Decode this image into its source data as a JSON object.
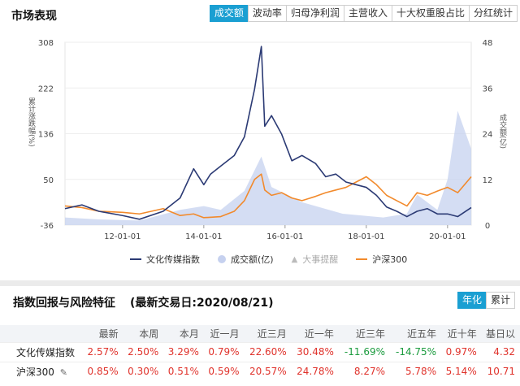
{
  "market": {
    "title": "市场表现",
    "tabs": [
      "成交额",
      "波动率",
      "归母净利润",
      "主营收入",
      "十大权重股占比",
      "分红统计"
    ],
    "active_tab": 0
  },
  "chart_data": {
    "type": "line",
    "ylabel_left": "累计涨跌幅(%)",
    "ylabel_right": "成交额(亿)",
    "y_left_ticks": [
      "308",
      "222",
      "136",
      "50",
      "-36"
    ],
    "y_right_ticks": [
      "48",
      "36",
      "24",
      "12",
      "0"
    ],
    "ylim_left": [
      -36,
      308
    ],
    "ylim_right": [
      0,
      48
    ],
    "x_ticks": [
      "12-01-01",
      "14-01-01",
      "16-01-01",
      "18-01-01",
      "20-01-01"
    ],
    "legend": [
      "文化传媒指数",
      "成交额(亿)",
      "大事提醒",
      "沪深300"
    ],
    "colors": {
      "index": "#2b3a74",
      "volume": "#c6d1ef",
      "hs300": "#f28a2c"
    },
    "series": [
      {
        "name": "文化传媒指数",
        "x": [
          "10-08",
          "11-01",
          "11-06",
          "12-01",
          "12-06",
          "13-01",
          "13-06",
          "13-10",
          "14-01",
          "14-03",
          "14-06",
          "14-10",
          "15-01",
          "15-04",
          "15-06",
          "15-07",
          "15-09",
          "15-12",
          "16-03",
          "16-06",
          "16-10",
          "17-01",
          "17-04",
          "17-07",
          "17-10",
          "18-01",
          "18-04",
          "18-07",
          "18-10",
          "19-01",
          "19-04",
          "19-07",
          "19-10",
          "20-01",
          "20-04",
          "20-08"
        ],
        "values": [
          -5,
          2,
          -10,
          -18,
          -25,
          -10,
          15,
          70,
          40,
          60,
          75,
          95,
          130,
          220,
          300,
          150,
          170,
          135,
          85,
          95,
          80,
          55,
          60,
          45,
          40,
          35,
          20,
          -2,
          -10,
          -20,
          -10,
          -5,
          -15,
          -15,
          -20,
          -3
        ]
      },
      {
        "name": "沪深300",
        "x": [
          "10-08",
          "11-01",
          "11-06",
          "12-01",
          "12-06",
          "13-01",
          "13-06",
          "13-10",
          "14-01",
          "14-06",
          "14-10",
          "15-01",
          "15-04",
          "15-06",
          "15-07",
          "15-09",
          "15-12",
          "16-03",
          "16-06",
          "16-10",
          "17-01",
          "17-04",
          "17-07",
          "17-10",
          "18-01",
          "18-04",
          "18-07",
          "18-10",
          "19-01",
          "19-04",
          "19-07",
          "19-10",
          "20-01",
          "20-04",
          "20-08"
        ],
        "values": [
          0,
          -3,
          -10,
          -12,
          -15,
          -5,
          -18,
          -15,
          -22,
          -20,
          -10,
          10,
          50,
          60,
          30,
          20,
          25,
          15,
          10,
          18,
          25,
          30,
          35,
          45,
          55,
          40,
          20,
          10,
          0,
          25,
          20,
          28,
          35,
          25,
          55
        ]
      },
      {
        "name": "成交额(亿)",
        "x": [
          "10-08",
          "11-06",
          "12-06",
          "13-06",
          "14-01",
          "14-06",
          "15-01",
          "15-06",
          "15-09",
          "16-06",
          "17-06",
          "18-06",
          "19-01",
          "19-04",
          "19-10",
          "20-01",
          "20-04",
          "20-08"
        ],
        "values": [
          2,
          1.5,
          1.2,
          4,
          5,
          4,
          9,
          18,
          10,
          6,
          3,
          2,
          3,
          8,
          4,
          12,
          30,
          20
        ]
      }
    ]
  },
  "risk": {
    "title": "指数回报与风险特征",
    "date_text": "(最新交易日:2020/08/21)",
    "toggle": [
      "年化",
      "累计"
    ],
    "headers": [
      "最新",
      "本周",
      "本月",
      "近一月",
      "近三月",
      "近一年",
      "近三年",
      "近五年",
      "近十年",
      "基日以"
    ],
    "rows": [
      {
        "name": "文化传媒指数",
        "values": [
          "2.57%",
          "2.50%",
          "3.29%",
          "0.79%",
          "22.60%",
          "30.48%",
          "-11.69%",
          "-14.75%",
          "0.97%",
          "4.32"
        ]
      },
      {
        "name": "沪深300",
        "values": [
          "0.85%",
          "0.30%",
          "0.51%",
          "0.59%",
          "20.57%",
          "24.78%",
          "8.27%",
          "5.78%",
          "5.14%",
          "10.71"
        ]
      }
    ]
  }
}
